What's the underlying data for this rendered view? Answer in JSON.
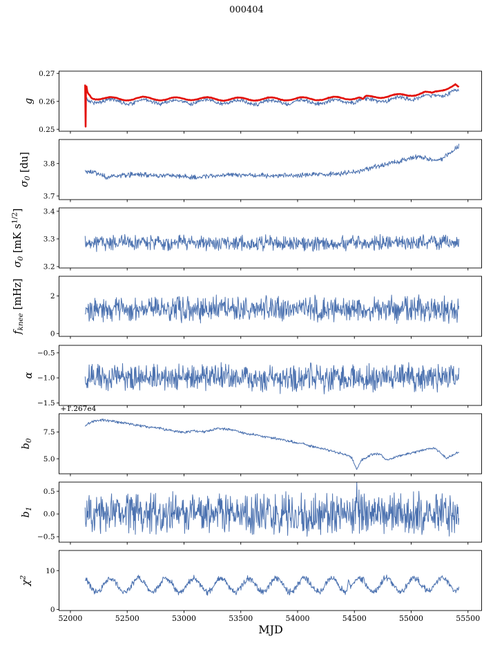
{
  "chart_data": {
    "type": "line",
    "title": "000404",
    "xlabel": "MJD",
    "xlim": [
      51900,
      55620
    ],
    "x_data_range": [
      52130,
      55420
    ],
    "n_points": 850,
    "axis_color": "#000000",
    "grid": false,
    "legend": "none",
    "xticks": [
      {
        "v": 52000,
        "label": "52000"
      },
      {
        "v": 52500,
        "label": "52500"
      },
      {
        "v": 53000,
        "label": "53000"
      },
      {
        "v": 53500,
        "label": "53500"
      },
      {
        "v": 54000,
        "label": "54000"
      },
      {
        "v": 54500,
        "label": "54500"
      },
      {
        "v": 55000,
        "label": "55000"
      },
      {
        "v": 55500,
        "label": "55500"
      }
    ],
    "panels": [
      {
        "id": "g",
        "ylabel": "g",
        "ylabel_x": 46,
        "ylim": [
          0.2493,
          0.2708
        ],
        "yticks": [
          {
            "v": 0.25,
            "label": "0.25"
          },
          {
            "v": 0.26,
            "label": "0.26"
          },
          {
            "v": 0.27,
            "label": "0.27"
          }
        ],
        "series": [
          {
            "name": "gain-daily",
            "color": "#4c72b0",
            "width": 1.0,
            "noise": 0.0009,
            "osc": {
              "amp": 0.0007,
              "period": 280,
              "phase": 2.6
            },
            "trend": [
              [
                52130,
                0.2622
              ],
              [
                52150,
                0.2603
              ],
              [
                52300,
                0.2602
              ],
              [
                52500,
                0.2598
              ],
              [
                52700,
                0.26
              ],
              [
                52900,
                0.2597
              ],
              [
                53100,
                0.2599
              ],
              [
                53400,
                0.2597
              ],
              [
                53700,
                0.2596
              ],
              [
                54000,
                0.2598
              ],
              [
                54200,
                0.2597
              ],
              [
                54400,
                0.26
              ],
              [
                54600,
                0.2603
              ],
              [
                54800,
                0.2606
              ],
              [
                55000,
                0.2612
              ],
              [
                55100,
                0.2619
              ],
              [
                55180,
                0.2614
              ],
              [
                55300,
                0.2629
              ],
              [
                55380,
                0.2641
              ],
              [
                55420,
                0.2629
              ]
            ]
          },
          {
            "name": "gain-smoothed",
            "color": "#e3120b",
            "width": 2.6,
            "noise": 0.00012,
            "osc": {
              "amp": 0.00055,
              "period": 280,
              "phase": 2.6
            },
            "trend": [
              [
                52130,
                0.2658
              ],
              [
                52134,
                0.2502
              ],
              [
                52138,
                0.266
              ],
              [
                52150,
                0.2632
              ],
              [
                52190,
                0.2614
              ],
              [
                52260,
                0.2611
              ],
              [
                52450,
                0.2608
              ],
              [
                52650,
                0.2611
              ],
              [
                52850,
                0.2608
              ],
              [
                53050,
                0.261
              ],
              [
                53350,
                0.2608
              ],
              [
                53650,
                0.2608
              ],
              [
                53950,
                0.2609
              ],
              [
                54150,
                0.2609
              ],
              [
                54350,
                0.2611
              ],
              [
                54545,
                0.2613
              ],
              [
                54575,
                0.2604
              ],
              [
                54600,
                0.2614
              ],
              [
                54750,
                0.2618
              ],
              [
                54950,
                0.2622
              ],
              [
                55050,
                0.2627
              ],
              [
                55120,
                0.2631
              ],
              [
                55180,
                0.2626
              ],
              [
                55260,
                0.2641
              ],
              [
                55340,
                0.2652
              ],
              [
                55390,
                0.2659
              ],
              [
                55420,
                0.2646
              ]
            ]
          }
        ]
      },
      {
        "id": "sigma0-du",
        "ylabel": "σ_{0} [du]",
        "ylabel_x": 40,
        "ylim": [
          3.689,
          3.874
        ],
        "yticks": [
          {
            "v": 3.7,
            "label": "3.7"
          },
          {
            "v": 3.8,
            "label": "3.8"
          }
        ],
        "series": [
          {
            "name": "sigma0-du",
            "color": "#4c72b0",
            "width": 1.0,
            "noise": 0.009,
            "trend": [
              [
                52130,
                3.777
              ],
              [
                52220,
                3.771
              ],
              [
                52320,
                3.757
              ],
              [
                52450,
                3.764
              ],
              [
                52600,
                3.767
              ],
              [
                52750,
                3.764
              ],
              [
                52950,
                3.763
              ],
              [
                53100,
                3.757
              ],
              [
                53250,
                3.763
              ],
              [
                53450,
                3.767
              ],
              [
                53600,
                3.763
              ],
              [
                53800,
                3.762
              ],
              [
                54000,
                3.764
              ],
              [
                54200,
                3.766
              ],
              [
                54400,
                3.77
              ],
              [
                54550,
                3.776
              ],
              [
                54650,
                3.788
              ],
              [
                54800,
                3.798
              ],
              [
                54950,
                3.812
              ],
              [
                55050,
                3.821
              ],
              [
                55120,
                3.817
              ],
              [
                55220,
                3.809
              ],
              [
                55280,
                3.815
              ],
              [
                55340,
                3.833
              ],
              [
                55400,
                3.849
              ],
              [
                55420,
                3.853
              ]
            ]
          }
        ]
      },
      {
        "id": "sigma0-mks",
        "ylabel": "σ_{0} [mK s^{1/2}]",
        "ylabel_x": 30,
        "ylim": [
          3.195,
          3.412
        ],
        "yticks": [
          {
            "v": 3.2,
            "label": "3.2"
          },
          {
            "v": 3.3,
            "label": "3.3"
          },
          {
            "v": 3.4,
            "label": "3.4"
          }
        ],
        "series": [
          {
            "name": "sigma0-mks",
            "color": "#4c72b0",
            "width": 1.0,
            "noise": 0.032,
            "trend": [
              [
                52130,
                3.282
              ],
              [
                52400,
                3.287
              ],
              [
                52700,
                3.285
              ],
              [
                53000,
                3.288
              ],
              [
                53300,
                3.284
              ],
              [
                53600,
                3.285
              ],
              [
                53900,
                3.286
              ],
              [
                54200,
                3.284
              ],
              [
                54500,
                3.284
              ],
              [
                54800,
                3.286
              ],
              [
                55100,
                3.288
              ],
              [
                55420,
                3.286
              ]
            ]
          }
        ]
      },
      {
        "id": "fknee",
        "ylabel": "f_{knee} [mHz]",
        "ylabel_x": 30,
        "ylim": [
          -0.15,
          3.05
        ],
        "yticks": [
          {
            "v": 0,
            "label": "0"
          },
          {
            "v": 2,
            "label": "2"
          }
        ],
        "series": [
          {
            "name": "fknee",
            "color": "#4c72b0",
            "width": 1.0,
            "noise": 0.8,
            "trend": [
              [
                52130,
                1.33
              ],
              [
                53000,
                1.3
              ],
              [
                54000,
                1.31
              ],
              [
                55420,
                1.29
              ]
            ]
          }
        ]
      },
      {
        "id": "alpha",
        "ylabel": "α",
        "ylabel_x": 46,
        "ylim": [
          -1.55,
          -0.35
        ],
        "yticks": [
          {
            "v": -1.5,
            "label": "−1.5"
          },
          {
            "v": -1.0,
            "label": "−1.0"
          },
          {
            "v": -0.5,
            "label": "−0.5"
          }
        ],
        "series": [
          {
            "name": "alpha",
            "color": "#4c72b0",
            "width": 1.0,
            "noise": 0.33,
            "trend": [
              [
                52130,
                -1.0
              ],
              [
                53800,
                -1.01
              ],
              [
                55420,
                -1.01
              ]
            ]
          }
        ]
      },
      {
        "id": "b0",
        "ylabel": "b_{0}",
        "ylabel_x": 42,
        "offset_text": "+1.267e4",
        "ylim": [
          3.6,
          9.2
        ],
        "yticks": [
          {
            "v": 5.0,
            "label": "5.0"
          },
          {
            "v": 7.5,
            "label": "7.5"
          }
        ],
        "series": [
          {
            "name": "b0",
            "color": "#4c72b0",
            "width": 1.0,
            "noise": 0.14,
            "trend": [
              [
                52130,
                8.1
              ],
              [
                52200,
                8.5
              ],
              [
                52290,
                8.62
              ],
              [
                52400,
                8.42
              ],
              [
                52520,
                8.28
              ],
              [
                52650,
                8.02
              ],
              [
                52780,
                7.85
              ],
              [
                52900,
                7.6
              ],
              [
                53000,
                7.45
              ],
              [
                53080,
                7.62
              ],
              [
                53180,
                7.52
              ],
              [
                53300,
                7.82
              ],
              [
                53420,
                7.72
              ],
              [
                53520,
                7.42
              ],
              [
                53650,
                7.2
              ],
              [
                53800,
                6.9
              ],
              [
                53950,
                6.6
              ],
              [
                54100,
                6.25
              ],
              [
                54250,
                5.85
              ],
              [
                54400,
                5.45
              ],
              [
                54480,
                5.1
              ],
              [
                54520,
                3.95
              ],
              [
                54560,
                4.85
              ],
              [
                54650,
                5.4
              ],
              [
                54720,
                5.45
              ],
              [
                54790,
                4.85
              ],
              [
                54860,
                5.15
              ],
              [
                54960,
                5.45
              ],
              [
                55060,
                5.7
              ],
              [
                55160,
                5.95
              ],
              [
                55210,
                6.0
              ],
              [
                55260,
                5.55
              ],
              [
                55310,
                5.05
              ],
              [
                55360,
                5.35
              ],
              [
                55420,
                5.65
              ]
            ]
          }
        ]
      },
      {
        "id": "b1",
        "ylabel": "b_{1}",
        "ylabel_x": 42,
        "ylim": [
          -0.62,
          0.7
        ],
        "yticks": [
          {
            "v": -0.5,
            "label": "−0.5"
          },
          {
            "v": 0.0,
            "label": "0.0"
          },
          {
            "v": 0.5,
            "label": "0.5"
          }
        ],
        "series": [
          {
            "name": "b1",
            "color": "#4c72b0",
            "width": 1.0,
            "noise": 0.55,
            "trend": [
              [
                52130,
                0.01
              ],
              [
                54510,
                0.01
              ],
              [
                54518,
                0.5
              ],
              [
                54526,
                0.01
              ],
              [
                55420,
                0.0
              ]
            ]
          }
        ]
      },
      {
        "id": "chi2",
        "ylabel": "χ^{2}",
        "ylabel_x": 42,
        "ylim": [
          -0.3,
          15.2
        ],
        "yticks": [
          {
            "v": 0,
            "label": "0"
          },
          {
            "v": 10,
            "label": "10"
          }
        ],
        "series": [
          {
            "name": "chi2",
            "color": "#4c72b0",
            "width": 1.0,
            "noise": 1.0,
            "osc": {
              "amp": 1.75,
              "period": 243,
              "phase": 2.0
            },
            "trend": [
              [
                52130,
                6.2
              ],
              [
                53000,
                6.3
              ],
              [
                54000,
                6.2
              ],
              [
                54438,
                6.25
              ],
              [
                54450,
                9.6
              ],
              [
                54464,
                6.3
              ],
              [
                55000,
                6.4
              ],
              [
                55420,
                6.6
              ]
            ]
          }
        ]
      }
    ]
  }
}
